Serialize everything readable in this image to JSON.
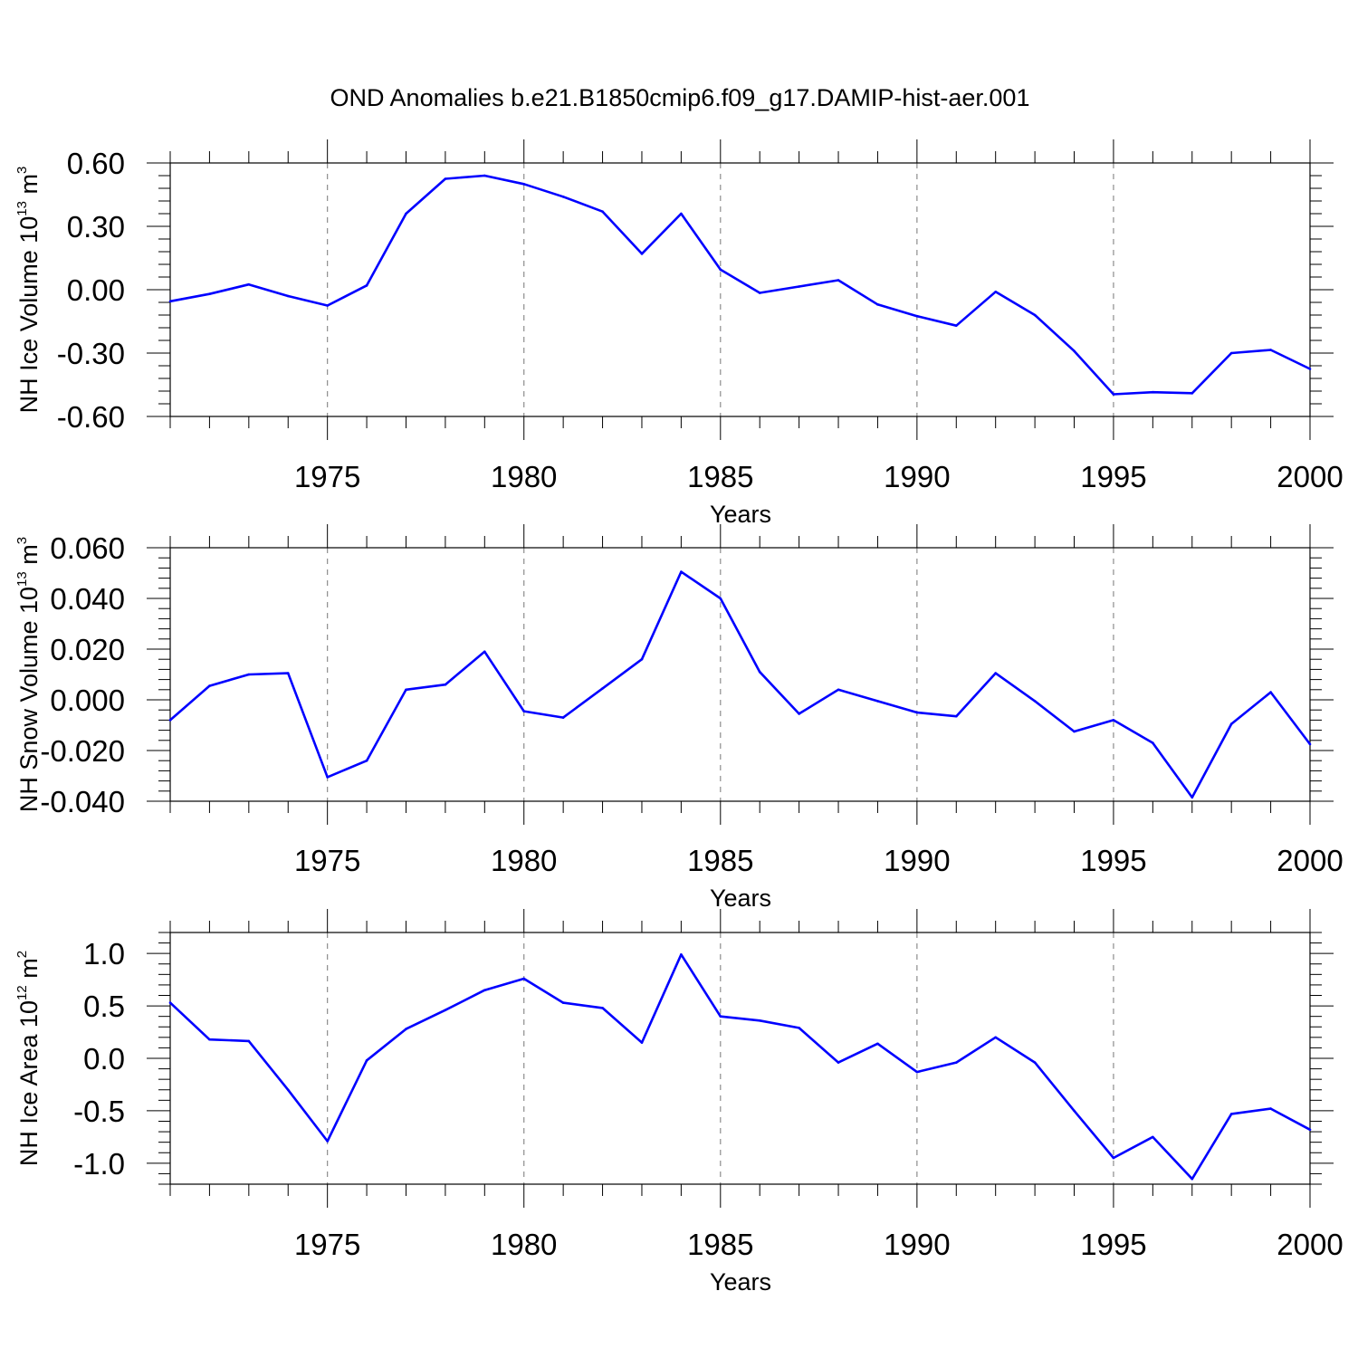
{
  "figure": {
    "title": "OND Anomalies b.e21.B1850cmip6.f09_g17.DAMIP-hist-aer.001"
  },
  "colors": {
    "series": "#0000ff",
    "grid": "#8c8c8c",
    "axis": "#000000"
  },
  "chart_data": [
    {
      "type": "line",
      "ylabel": {
        "base": "NH Ice Volume 10",
        "exp": "13",
        "unit": " m",
        "unit_exp": "3"
      },
      "xlabel": "Years",
      "xlim": [
        1971,
        2000
      ],
      "ylim": [
        -0.6,
        0.6
      ],
      "yticks": [
        -0.6,
        -0.3,
        0.0,
        0.3,
        0.6
      ],
      "yticklabels": [
        "-0.60",
        "-0.30",
        "0.00",
        "0.30",
        "0.60"
      ],
      "xticks": [
        1975,
        1980,
        1985,
        1990,
        1995,
        2000
      ],
      "xticklabels": [
        "1975",
        "1980",
        "1985",
        "1990",
        "1995",
        "2000"
      ],
      "grid_x": [
        1975,
        1980,
        1985,
        1990,
        1995
      ],
      "x": [
        1971,
        1972,
        1973,
        1974,
        1975,
        1976,
        1977,
        1978,
        1979,
        1980,
        1981,
        1982,
        1983,
        1984,
        1985,
        1986,
        1987,
        1988,
        1989,
        1990,
        1991,
        1992,
        1993,
        1994,
        1995,
        1996,
        1997,
        1998,
        1999,
        2000
      ],
      "values": [
        -0.055,
        -0.02,
        0.025,
        -0.03,
        -0.075,
        0.02,
        0.36,
        0.525,
        0.54,
        0.5,
        0.44,
        0.37,
        0.17,
        0.36,
        0.095,
        -0.015,
        0.015,
        0.045,
        -0.07,
        -0.125,
        -0.17,
        -0.01,
        -0.12,
        -0.29,
        -0.495,
        -0.485,
        -0.49,
        -0.3,
        -0.285,
        -0.375
      ]
    },
    {
      "type": "line",
      "ylabel": {
        "base": "NH Snow Volume 10",
        "exp": "13",
        "unit": " m",
        "unit_exp": "3"
      },
      "xlabel": "Years",
      "xlim": [
        1971,
        2000
      ],
      "ylim": [
        -0.04,
        0.06
      ],
      "yticks": [
        -0.04,
        -0.02,
        0.0,
        0.02,
        0.04,
        0.06
      ],
      "yticklabels": [
        "-0.040",
        "-0.020",
        "0.000",
        "0.020",
        "0.040",
        "0.060"
      ],
      "xticks": [
        1975,
        1980,
        1985,
        1990,
        1995,
        2000
      ],
      "xticklabels": [
        "1975",
        "1980",
        "1985",
        "1990",
        "1995",
        "2000"
      ],
      "grid_x": [
        1975,
        1980,
        1985,
        1990,
        1995
      ],
      "x": [
        1971,
        1972,
        1973,
        1974,
        1975,
        1976,
        1977,
        1978,
        1979,
        1980,
        1981,
        1982,
        1983,
        1984,
        1985,
        1986,
        1987,
        1988,
        1989,
        1990,
        1991,
        1992,
        1993,
        1994,
        1995,
        1996,
        1997,
        1998,
        1999,
        2000
      ],
      "values": [
        -0.008,
        0.0055,
        0.01,
        0.0105,
        -0.0305,
        -0.024,
        0.004,
        0.006,
        0.019,
        -0.0045,
        -0.007,
        0.0045,
        0.016,
        0.0505,
        0.04,
        0.011,
        -0.0055,
        0.004,
        -0.0005,
        -0.005,
        -0.0065,
        0.0105,
        -0.0005,
        -0.0125,
        -0.008,
        -0.017,
        -0.0385,
        -0.0095,
        0.003,
        -0.0175
      ]
    },
    {
      "type": "line",
      "ylabel": {
        "base": "NH Ice Area 10",
        "exp": "12",
        "unit": " m",
        "unit_exp": "2"
      },
      "xlabel": "Years",
      "xlim": [
        1971,
        2000
      ],
      "ylim": [
        -1.2,
        1.2
      ],
      "yticks": [
        -1.0,
        -0.5,
        0.0,
        0.5,
        1.0
      ],
      "yticklabels": [
        "-1.0",
        "-0.5",
        "0.0",
        "0.5",
        "1.0"
      ],
      "xticks": [
        1975,
        1980,
        1985,
        1990,
        1995,
        2000
      ],
      "xticklabels": [
        "1975",
        "1980",
        "1985",
        "1990",
        "1995",
        "2000"
      ],
      "grid_x": [
        1975,
        1980,
        1985,
        1990,
        1995
      ],
      "x": [
        1971,
        1972,
        1973,
        1974,
        1975,
        1976,
        1977,
        1978,
        1979,
        1980,
        1981,
        1982,
        1983,
        1984,
        1985,
        1986,
        1987,
        1988,
        1989,
        1990,
        1991,
        1992,
        1993,
        1994,
        1995,
        1996,
        1997,
        1998,
        1999,
        2000
      ],
      "values": [
        0.53,
        0.18,
        0.165,
        -0.3,
        -0.79,
        -0.02,
        0.28,
        0.46,
        0.65,
        0.76,
        0.53,
        0.48,
        0.15,
        0.99,
        0.4,
        0.36,
        0.29,
        -0.04,
        0.14,
        -0.13,
        -0.04,
        0.2,
        -0.04,
        -0.5,
        -0.95,
        -0.75,
        -1.15,
        -0.53,
        -0.48,
        -0.68
      ]
    }
  ]
}
